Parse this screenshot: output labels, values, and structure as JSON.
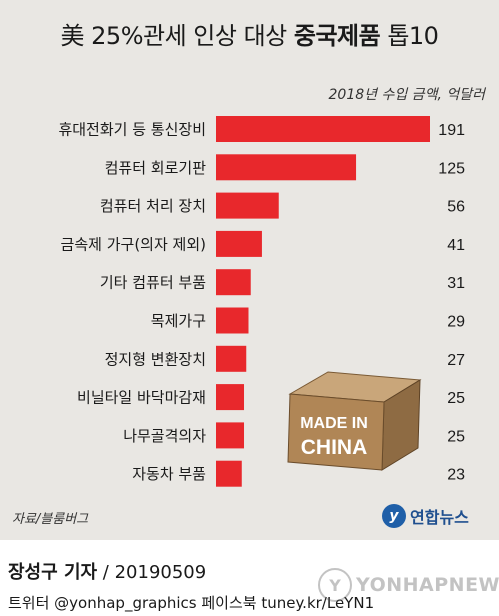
{
  "header": {
    "title_prefix": "美 25%관세 인상 대상 ",
    "title_bold": "중국제품",
    "title_suffix": " 톱10",
    "unit": "2018년 수입 금액, 억달러"
  },
  "chart_data": {
    "type": "bar",
    "orientation": "horizontal",
    "categories": [
      "휴대전화기 등 통신장비",
      "컴퓨터 회로기판",
      "컴퓨터 처리 장치",
      "금속제 가구(의자 제외)",
      "기타 컴퓨터 부품",
      "목제가구",
      "정지형 변환장치",
      "비닐타일 바닥마감재",
      "나무골격의자",
      "자동차 부품"
    ],
    "values": [
      191,
      125,
      56,
      41,
      31,
      29,
      27,
      25,
      25,
      23
    ],
    "title": "美 25%관세 인상 대상 중국제품 톱10",
    "unit_label": "2018년 수입 금액, 억달러",
    "bar_color": "#e8282c",
    "xlim": [
      0,
      191
    ],
    "grid": false
  },
  "box_illustration": {
    "line1": "MADE IN",
    "line2": "CHINA"
  },
  "footer": {
    "source": "자료/블룸버그",
    "logo_mark": "y",
    "logo_text": "연합뉴스",
    "reporter_name": "장성구 기자",
    "reporter_date": " / 20190509",
    "social": "트위터 @yonhap_graphics  페이스북 tuney.kr/LeYN1",
    "watermark": "YONHAPNEWS"
  }
}
